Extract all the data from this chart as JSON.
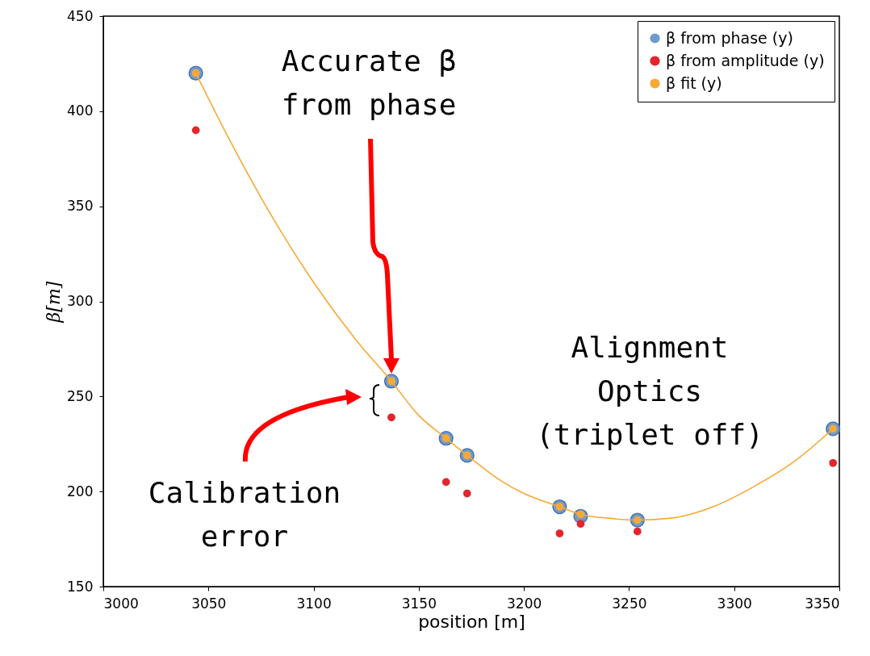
{
  "chart_data": {
    "type": "scatter",
    "xlabel": "position [m]",
    "ylabel": "β[m]",
    "xlim": [
      3000,
      3350
    ],
    "xticks": [
      3000,
      3050,
      3100,
      3150,
      3200,
      3250,
      3300,
      3350
    ],
    "ylim": [
      150,
      450
    ],
    "yticks": [
      150,
      200,
      250,
      300,
      350,
      400,
      450
    ],
    "grid": false,
    "legend": "top right",
    "marker": "circle",
    "series": [
      {
        "name": "β from phase (y)",
        "color": "#6f9bd1",
        "x": [
          3044,
          3137,
          3163,
          3173,
          3217,
          3227,
          3254,
          3347
        ],
        "values": [
          420,
          258,
          228,
          219,
          192,
          187,
          185,
          233
        ]
      },
      {
        "name": "β from amplitude (y)",
        "color": "#e3262b",
        "x": [
          3044,
          3137,
          3163,
          3173,
          3217,
          3227,
          3254,
          3347
        ],
        "values": [
          390,
          239,
          205,
          199,
          178,
          183,
          179,
          215
        ]
      },
      {
        "name": "β fit (y)",
        "color": "#f7a935",
        "x": [
          3044,
          3137,
          3163,
          3173,
          3217,
          3227,
          3254,
          3347
        ],
        "values": [
          420,
          258,
          228,
          219,
          192,
          188,
          185,
          233
        ]
      },
      {
        "color": "#f7a935",
        "type": "line",
        "marker": "none",
        "x": [
          3044,
          3060,
          3080,
          3100,
          3120,
          3137,
          3150,
          3163,
          3173,
          3190,
          3200,
          3217,
          3227,
          3240,
          3254,
          3270,
          3290,
          3310,
          3330,
          3347
        ],
        "values": [
          420,
          385,
          345,
          310,
          280,
          258,
          240,
          228,
          219,
          205,
          199,
          192,
          188,
          186,
          185,
          186,
          192,
          203,
          217,
          233
        ]
      }
    ],
    "annotations": [
      "Accurate β\nfrom phase",
      "Alignment\nOptics\n(triplet off)",
      "Calibration\nerror"
    ]
  }
}
